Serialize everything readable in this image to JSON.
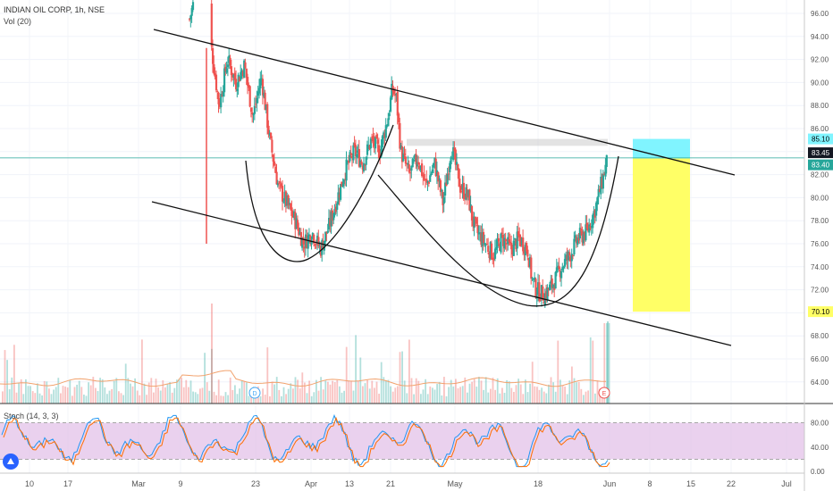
{
  "header": {
    "symbol": "INDIAN OIL CORP, 1h, NSE",
    "volume_label": "Vol (20)",
    "stoch_label": "Stoch (14, 3, 3)"
  },
  "colors": {
    "up": "#26a69a",
    "down": "#ef5350",
    "stoch_band": "#e1bee7",
    "target_box": "#80f4ff",
    "stop_box": "#ffff66",
    "last_price": "#26a69a",
    "channel": "#111111"
  },
  "chart_data": [
    {
      "type": "candlestick",
      "title": "INDIAN OIL CORP, 1h, NSE",
      "y_axis_ticks": [
        "96.00",
        "94.00",
        "92.00",
        "90.00",
        "88.00",
        "86.00",
        "84.00",
        "82.00",
        "80.00",
        "78.00",
        "76.00",
        "74.00",
        "72.00",
        "70.00",
        "68.00",
        "66.00",
        "64.00"
      ],
      "ylim": [
        62.5,
        97
      ],
      "x_axis_ticks": [
        "10",
        "17",
        "Mar",
        "9",
        "23",
        "Apr",
        "13",
        "21",
        "May",
        "18",
        "Jun",
        "8",
        "15",
        "22",
        "Jul"
      ],
      "price_labels": {
        "target": "85.10",
        "last": "83.45",
        "entry": "83.40",
        "stop": "70.10"
      },
      "events": [
        "D",
        "E"
      ],
      "path_points": [
        [
          0,
          95.5
        ],
        [
          2,
          97.0
        ],
        [
          10,
          93.5
        ],
        [
          14,
          88.0
        ],
        [
          18,
          92.0
        ],
        [
          22,
          90.0
        ],
        [
          26,
          91.5
        ],
        [
          30,
          87.0
        ],
        [
          34,
          90.5
        ],
        [
          38,
          85.0
        ],
        [
          42,
          81.0
        ],
        [
          46,
          79.5
        ],
        [
          50,
          78.0
        ],
        [
          54,
          76.0
        ],
        [
          58,
          77.0
        ],
        [
          62,
          75.5
        ],
        [
          66,
          77.5
        ],
        [
          70,
          80.0
        ],
        [
          74,
          82.5
        ],
        [
          78,
          84.0
        ],
        [
          82,
          83.0
        ],
        [
          86,
          85.0
        ],
        [
          90,
          84.0
        ],
        [
          94,
          87.0
        ],
        [
          96,
          89.5
        ],
        [
          98,
          88.5
        ],
        [
          100,
          84.0
        ],
        [
          104,
          82.0
        ],
        [
          108,
          83.5
        ],
        [
          112,
          81.0
        ],
        [
          116,
          83.0
        ],
        [
          120,
          79.5
        ],
        [
          124,
          84.5
        ],
        [
          128,
          81.0
        ],
        [
          132,
          80.0
        ],
        [
          134,
          78.0
        ],
        [
          136,
          77.0
        ],
        [
          140,
          76.0
        ],
        [
          144,
          75.0
        ],
        [
          148,
          76.5
        ],
        [
          152,
          75.5
        ],
        [
          156,
          76.5
        ],
        [
          160,
          75.5
        ],
        [
          162,
          73.0
        ],
        [
          164,
          72.0
        ],
        [
          168,
          71.5
        ],
        [
          172,
          72.5
        ],
        [
          176,
          74.0
        ],
        [
          180,
          75.0
        ],
        [
          184,
          76.5
        ],
        [
          188,
          77.0
        ],
        [
          192,
          79.0
        ],
        [
          196,
          82.0
        ],
        [
          198,
          83.4
        ]
      ],
      "drawings": {
        "channel_upper": [
          [
            0,
            94.8
          ],
          [
            210,
            82.2
          ]
        ],
        "channel_lower": [
          [
            0,
            80.0
          ],
          [
            210,
            67.2
          ]
        ],
        "resistance_zone": [
          84.5,
          85.1
        ]
      }
    },
    {
      "type": "line",
      "title": "Stoch (14, 3, 3)",
      "y_axis_ticks": [
        "80.00",
        "40.00",
        "0.00"
      ],
      "ylim": [
        0,
        100
      ],
      "bands": [
        20,
        80
      ]
    }
  ]
}
